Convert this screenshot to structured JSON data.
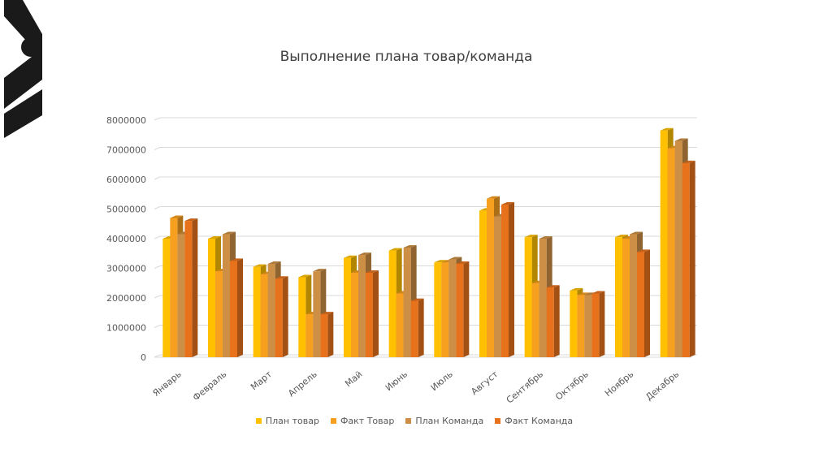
{
  "chart_data": {
    "type": "bar",
    "title": "Выполнение плана товар/команда",
    "categories": [
      "Январь",
      "Февраль",
      "Март",
      "Апрель",
      "Май",
      "Июнь",
      "Июль",
      "Август",
      "Сентябрь",
      "Октябрь",
      "Ноябрь",
      "Декабрь"
    ],
    "series": [
      {
        "name": "План товар",
        "color": "#FFC000",
        "values": [
          4000000,
          4000000,
          3050000,
          2700000,
          3350000,
          3600000,
          3200000,
          4950000,
          4050000,
          2250000,
          4050000,
          7650000
        ]
      },
      {
        "name": "Факт Товар",
        "color": "#F79F1F",
        "values": [
          4700000,
          2900000,
          2800000,
          1450000,
          2850000,
          2150000,
          3200000,
          5350000,
          2500000,
          2100000,
          4000000,
          7050000
        ]
      },
      {
        "name": "План Команда",
        "color": "#CC8F45",
        "values": [
          4150000,
          4150000,
          3150000,
          2900000,
          3450000,
          3700000,
          3300000,
          4750000,
          4000000,
          2100000,
          4150000,
          7300000
        ]
      },
      {
        "name": "Факт Команда",
        "color": "#E8721C",
        "values": [
          4600000,
          3250000,
          2650000,
          1450000,
          2850000,
          1900000,
          3150000,
          5150000,
          2350000,
          2150000,
          3550000,
          6550000
        ]
      }
    ],
    "yticks": [
      "0",
      "1000000",
      "2000000",
      "3000000",
      "4000000",
      "5000000",
      "6000000",
      "7000000",
      "8000000"
    ],
    "ylim": [
      0,
      8000000
    ],
    "grid": true,
    "legend": "bottom"
  }
}
